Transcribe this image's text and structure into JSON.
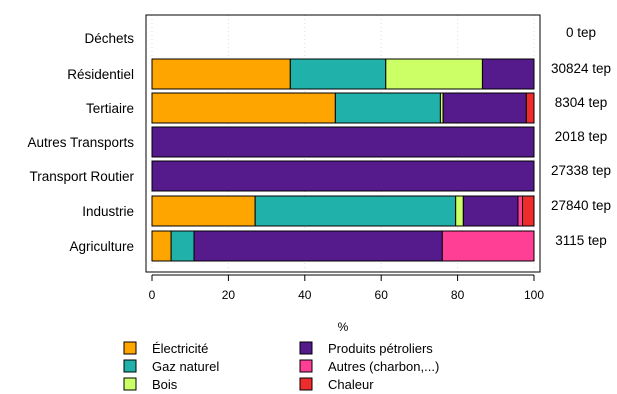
{
  "chart_data": {
    "type": "bar",
    "orientation": "horizontal",
    "stacked": true,
    "percent": true,
    "categories": [
      "Déchets",
      "Résidentiel",
      "Tertiaire",
      "Autres Transports",
      "Transport Routier",
      "Industrie",
      "Agriculture"
    ],
    "totals": [
      "0 tep",
      "30824 tep",
      "8304 tep",
      "2018 tep",
      "27338 tep",
      "27840 tep",
      "3115 tep"
    ],
    "series": [
      {
        "name": "Électricité",
        "color": "#FFA500",
        "values": [
          0,
          36.2,
          48.0,
          0,
          0,
          27.0,
          5.0
        ]
      },
      {
        "name": "Gaz naturel",
        "color": "#20B2AA",
        "values": [
          0,
          25.0,
          27.5,
          0,
          0,
          52.5,
          6.0
        ]
      },
      {
        "name": "Bois",
        "color": "#CCFF66",
        "values": [
          0,
          25.3,
          0.7,
          0,
          0,
          2.0,
          0
        ]
      },
      {
        "name": "Produits pétroliers",
        "color": "#551A8B",
        "values": [
          0,
          13.5,
          21.8,
          100,
          100,
          14.3,
          65.0
        ]
      },
      {
        "name": "Autres (charbon,...)",
        "color": "#FF3E96",
        "values": [
          0,
          0,
          0,
          0,
          0,
          1.2,
          24.0
        ]
      },
      {
        "name": "Chaleur",
        "color": "#EE2C2C",
        "values": [
          0,
          0,
          2.0,
          0,
          0,
          3.0,
          0
        ]
      }
    ],
    "xlabel": "%",
    "ylabel": "",
    "xlim": [
      0,
      100
    ],
    "xticks": [
      0,
      20,
      40,
      60,
      80,
      100
    ],
    "grid": "vertical dotted",
    "legend_placement": "bottom"
  }
}
